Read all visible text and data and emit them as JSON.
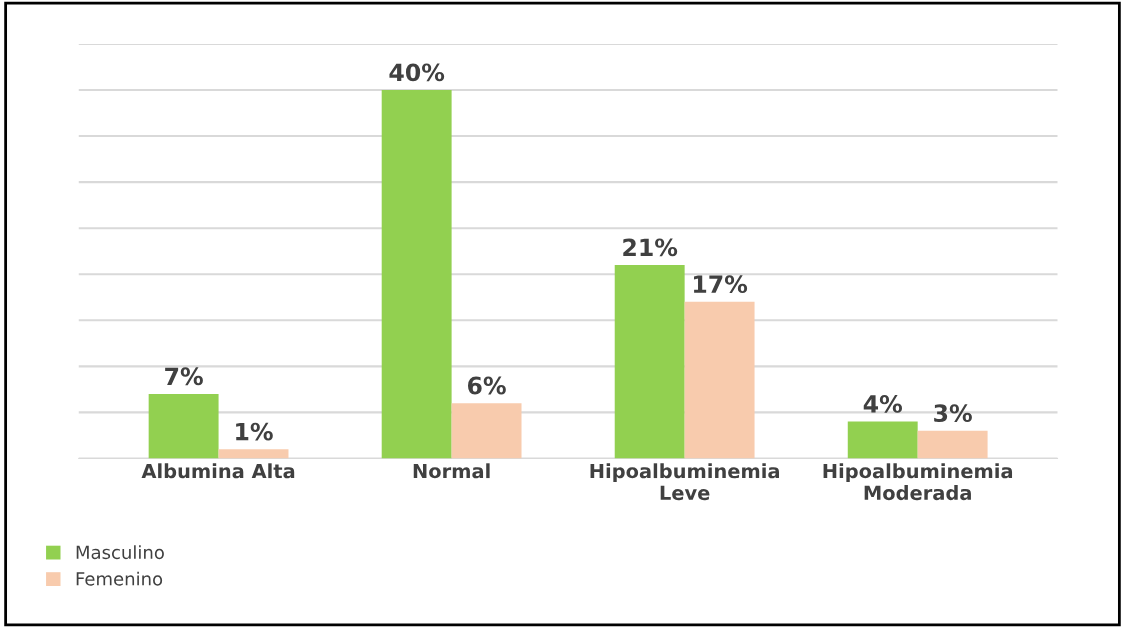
{
  "chart_data": {
    "type": "bar",
    "categories": [
      "Albumina Alta",
      "Normal",
      "Hipoalbuminemia\nLeve",
      "Hipoalbuminemia\nModerada"
    ],
    "series": [
      {
        "name": "Masculino",
        "color": "#92d050",
        "values": [
          7,
          40,
          21,
          4
        ],
        "value_labels": [
          "7%",
          "40%",
          "21%",
          "4%"
        ]
      },
      {
        "name": "Femenino",
        "color": "#f8cbad",
        "values": [
          1,
          6,
          17,
          3
        ],
        "value_labels": [
          "1%",
          "6%",
          "17%",
          "3%"
        ]
      }
    ],
    "ylim": [
      0,
      45
    ],
    "yticks": [
      {
        "value": 0,
        "label": null
      },
      {
        "value": 5,
        "label": null
      },
      {
        "value": 10,
        "label": null
      },
      {
        "value": 15,
        "label": null
      },
      {
        "value": 20,
        "label": null
      },
      {
        "value": 25,
        "label": null
      },
      {
        "value": 30,
        "label": null
      },
      {
        "value": 35,
        "label": null
      },
      {
        "value": 40,
        "label": null
      },
      {
        "value": 45,
        "label": null
      }
    ],
    "grid": "y",
    "legend": "bottom left",
    "tick_labels": "x"
  }
}
